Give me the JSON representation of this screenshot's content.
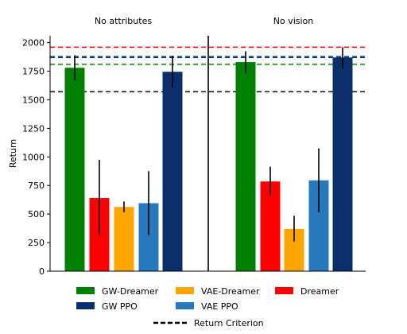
{
  "chart_data": {
    "type": "bar",
    "ylabel": "Return",
    "ylim": [
      0,
      2060
    ],
    "yticks": [
      0,
      250,
      500,
      750,
      1000,
      1250,
      1500,
      1750,
      2000
    ],
    "panels": [
      {
        "title": "No attributes",
        "bars": [
          {
            "series": "GW-Dreamer",
            "value": 1780,
            "err_low": 1670,
            "err_high": 1890
          },
          {
            "series": "Dreamer",
            "value": 640,
            "err_low": 315,
            "err_high": 975
          },
          {
            "series": "VAE-Dreamer",
            "value": 562,
            "err_low": 515,
            "err_high": 610
          },
          {
            "series": "VAE PPO",
            "value": 595,
            "err_low": 315,
            "err_high": 875
          },
          {
            "series": "GW PPO",
            "value": 1745,
            "err_low": 1610,
            "err_high": 1885
          }
        ]
      },
      {
        "title": "No vision",
        "bars": [
          {
            "series": "GW-Dreamer",
            "value": 1830,
            "err_low": 1735,
            "err_high": 1925
          },
          {
            "series": "Dreamer",
            "value": 785,
            "err_low": 660,
            "err_high": 915
          },
          {
            "series": "VAE-Dreamer",
            "value": 370,
            "err_low": 260,
            "err_high": 485
          },
          {
            "series": "VAE PPO",
            "value": 795,
            "err_low": 515,
            "err_high": 1075
          },
          {
            "series": "GW PPO",
            "value": 1870,
            "err_low": 1770,
            "err_high": 1960
          }
        ]
      }
    ],
    "reference_lines": [
      {
        "name": "Return Criterion",
        "value": 1570,
        "color": "#000000",
        "style": "dashed"
      },
      {
        "value": 1960,
        "color": "#ff0000",
        "style": "dashed"
      },
      {
        "value": 1880,
        "color": "#2878bd",
        "style": "dashed"
      },
      {
        "value": 1870,
        "color": "#0b2f6b",
        "style": "dashed"
      },
      {
        "value": 1810,
        "color": "#008000",
        "style": "dashed"
      }
    ],
    "series": [
      {
        "name": "GW-Dreamer",
        "color": "#008000"
      },
      {
        "name": "VAE-Dreamer",
        "color": "#ffa500"
      },
      {
        "name": "Dreamer",
        "color": "#ff0000"
      },
      {
        "name": "GW PPO",
        "color": "#0b2f6b"
      },
      {
        "name": "VAE PPO",
        "color": "#2878bd"
      }
    ],
    "legend": {
      "placement": "bottom",
      "items": [
        "GW-Dreamer",
        "VAE-Dreamer",
        "Dreamer",
        "GW PPO",
        "VAE PPO"
      ],
      "criterion_label": "Return Criterion"
    }
  }
}
